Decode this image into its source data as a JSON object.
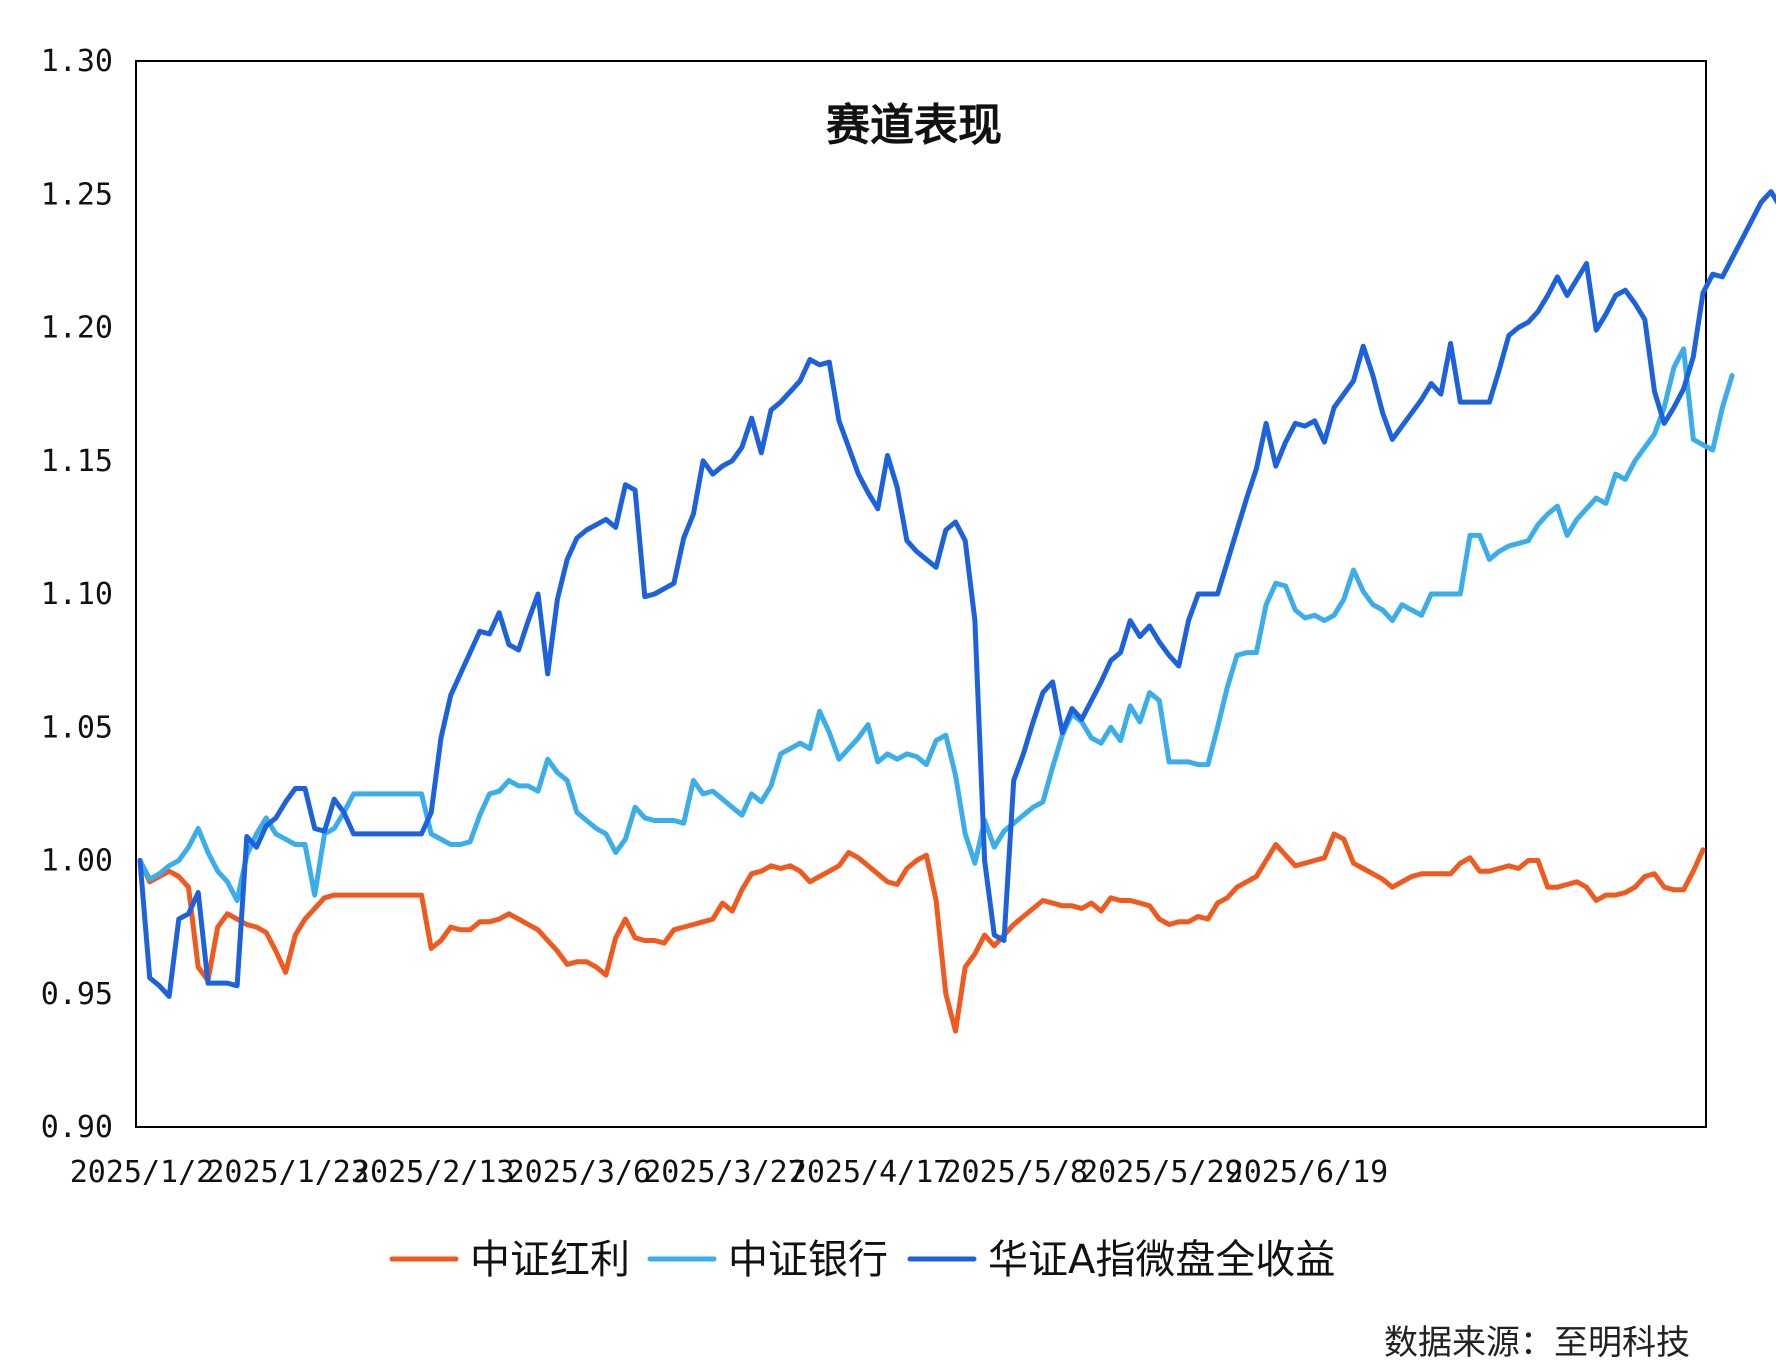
{
  "chart_data": {
    "type": "line",
    "title": "赛道表现",
    "xlabel": "",
    "ylabel": "",
    "ylim": [
      0.9,
      1.3
    ],
    "yticks": [
      "0.90",
      "0.95",
      "1.00",
      "1.05",
      "1.10",
      "1.15",
      "1.20",
      "1.25",
      "1.30"
    ],
    "xticks": [
      "2025/1/2",
      "2025/1/23",
      "2025/2/13",
      "2025/3/6",
      "2025/3/27",
      "2025/4/17",
      "2025/5/8",
      "2025/5/29",
      "2025/6/19"
    ],
    "grid": false,
    "legend_position": "bottom",
    "source": "数据来源：至明科技",
    "series": [
      {
        "name": "中证红利",
        "color": "#f05a1e",
        "values": [
          1.0,
          0.992,
          0.994,
          0.996,
          0.994,
          0.99,
          0.96,
          0.955,
          0.975,
          0.98,
          0.978,
          0.976,
          0.975,
          0.973,
          0.966,
          0.958,
          0.972,
          0.978,
          0.982,
          0.986,
          0.987,
          0.987,
          0.987,
          0.987,
          0.987,
          0.987,
          0.987,
          0.987,
          0.987,
          0.987,
          0.967,
          0.97,
          0.975,
          0.974,
          0.974,
          0.977,
          0.977,
          0.978,
          0.98,
          0.978,
          0.976,
          0.974,
          0.97,
          0.966,
          0.961,
          0.962,
          0.962,
          0.96,
          0.957,
          0.971,
          0.978,
          0.971,
          0.97,
          0.97,
          0.969,
          0.974,
          0.975,
          0.976,
          0.977,
          0.978,
          0.984,
          0.981,
          0.989,
          0.995,
          0.996,
          0.998,
          0.997,
          0.998,
          0.996,
          0.992,
          0.994,
          0.996,
          0.998,
          1.003,
          1.001,
          0.998,
          0.995,
          0.992,
          0.991,
          0.997,
          1.0,
          1.002,
          0.985,
          0.95,
          0.936,
          0.96,
          0.965,
          0.972,
          0.968,
          0.972,
          0.976,
          0.979,
          0.982,
          0.985,
          0.984,
          0.983,
          0.983,
          0.982,
          0.984,
          0.981,
          0.986,
          0.985,
          0.985,
          0.984,
          0.983,
          0.978,
          0.976,
          0.977,
          0.977,
          0.979,
          0.978,
          0.984,
          0.986,
          0.99,
          0.992,
          0.994,
          1.0,
          1.006,
          1.002,
          0.998,
          0.999,
          1.0,
          1.001,
          1.01,
          1.008,
          0.999,
          0.997,
          0.995,
          0.993,
          0.99,
          0.992,
          0.994,
          0.995,
          0.995,
          0.995,
          0.995,
          0.999,
          1.001,
          0.996,
          0.996,
          0.997,
          0.998,
          0.997,
          1.0,
          1.0,
          0.99,
          0.99,
          0.991,
          0.992,
          0.99,
          0.985,
          0.987,
          0.987,
          0.988,
          0.99,
          0.994,
          0.995,
          0.99,
          0.989,
          0.989,
          0.996,
          1.004
        ]
      },
      {
        "name": "中证银行",
        "color": "#3aaeea",
        "values": [
          1.0,
          0.993,
          0.995,
          0.998,
          1.0,
          1.005,
          1.012,
          1.003,
          0.996,
          0.992,
          0.985,
          1.002,
          1.01,
          1.016,
          1.01,
          1.008,
          1.006,
          1.006,
          0.987,
          1.01,
          1.012,
          1.018,
          1.025,
          1.025,
          1.025,
          1.025,
          1.025,
          1.025,
          1.025,
          1.025,
          1.01,
          1.008,
          1.006,
          1.006,
          1.007,
          1.017,
          1.025,
          1.026,
          1.03,
          1.028,
          1.028,
          1.026,
          1.038,
          1.033,
          1.03,
          1.018,
          1.015,
          1.012,
          1.01,
          1.003,
          1.008,
          1.02,
          1.016,
          1.015,
          1.015,
          1.015,
          1.014,
          1.03,
          1.025,
          1.026,
          1.023,
          1.02,
          1.017,
          1.025,
          1.022,
          1.028,
          1.04,
          1.042,
          1.044,
          1.042,
          1.056,
          1.048,
          1.038,
          1.042,
          1.046,
          1.051,
          1.037,
          1.04,
          1.038,
          1.04,
          1.039,
          1.036,
          1.045,
          1.047,
          1.032,
          1.01,
          0.999,
          1.015,
          1.005,
          1.011,
          1.014,
          1.017,
          1.02,
          1.022,
          1.035,
          1.047,
          1.055,
          1.052,
          1.046,
          1.044,
          1.05,
          1.045,
          1.058,
          1.052,
          1.063,
          1.06,
          1.037,
          1.037,
          1.037,
          1.036,
          1.036,
          1.05,
          1.065,
          1.077,
          1.078,
          1.078,
          1.096,
          1.104,
          1.103,
          1.094,
          1.091,
          1.092,
          1.09,
          1.092,
          1.098,
          1.109,
          1.101,
          1.096,
          1.094,
          1.09,
          1.096,
          1.094,
          1.092,
          1.1,
          1.1,
          1.1,
          1.1,
          1.122,
          1.122,
          1.113,
          1.116,
          1.118,
          1.119,
          1.12,
          1.126,
          1.13,
          1.133,
          1.122,
          1.128,
          1.132,
          1.136,
          1.134,
          1.145,
          1.143,
          1.15,
          1.155,
          1.16,
          1.17,
          1.185,
          1.192,
          1.158,
          1.156,
          1.154,
          1.17,
          1.182
        ]
      },
      {
        "name": "华证A指微盘全收益",
        "color": "#1d62dd",
        "values": [
          1.0,
          0.956,
          0.953,
          0.949,
          0.978,
          0.98,
          0.988,
          0.954,
          0.954,
          0.954,
          0.953,
          1.009,
          1.005,
          1.013,
          1.016,
          1.022,
          1.027,
          1.027,
          1.012,
          1.011,
          1.023,
          1.018,
          1.01,
          1.01,
          1.01,
          1.01,
          1.01,
          1.01,
          1.01,
          1.01,
          1.018,
          1.046,
          1.062,
          1.07,
          1.078,
          1.086,
          1.085,
          1.093,
          1.081,
          1.079,
          1.09,
          1.1,
          1.07,
          1.098,
          1.113,
          1.121,
          1.124,
          1.126,
          1.128,
          1.125,
          1.141,
          1.139,
          1.099,
          1.1,
          1.102,
          1.104,
          1.121,
          1.13,
          1.15,
          1.145,
          1.148,
          1.15,
          1.155,
          1.166,
          1.153,
          1.169,
          1.172,
          1.176,
          1.18,
          1.188,
          1.186,
          1.187,
          1.165,
          1.155,
          1.145,
          1.138,
          1.132,
          1.152,
          1.14,
          1.12,
          1.116,
          1.113,
          1.11,
          1.124,
          1.127,
          1.12,
          1.09,
          1.0,
          0.972,
          0.97,
          1.03,
          1.04,
          1.052,
          1.063,
          1.067,
          1.048,
          1.057,
          1.053,
          1.06,
          1.067,
          1.075,
          1.078,
          1.09,
          1.084,
          1.088,
          1.082,
          1.077,
          1.073,
          1.09,
          1.1,
          1.1,
          1.1,
          1.112,
          1.124,
          1.136,
          1.147,
          1.164,
          1.148,
          1.157,
          1.164,
          1.163,
          1.165,
          1.157,
          1.17,
          1.175,
          1.18,
          1.193,
          1.182,
          1.168,
          1.158,
          1.163,
          1.168,
          1.173,
          1.179,
          1.175,
          1.194,
          1.172,
          1.172,
          1.172,
          1.172,
          1.184,
          1.197,
          1.2,
          1.202,
          1.206,
          1.212,
          1.219,
          1.212,
          1.218,
          1.224,
          1.199,
          1.205,
          1.212,
          1.214,
          1.209,
          1.203,
          1.176,
          1.164,
          1.17,
          1.177,
          1.189,
          1.213,
          1.22,
          1.219,
          1.226,
          1.233,
          1.24,
          1.247,
          1.251,
          1.245
        ]
      }
    ]
  }
}
